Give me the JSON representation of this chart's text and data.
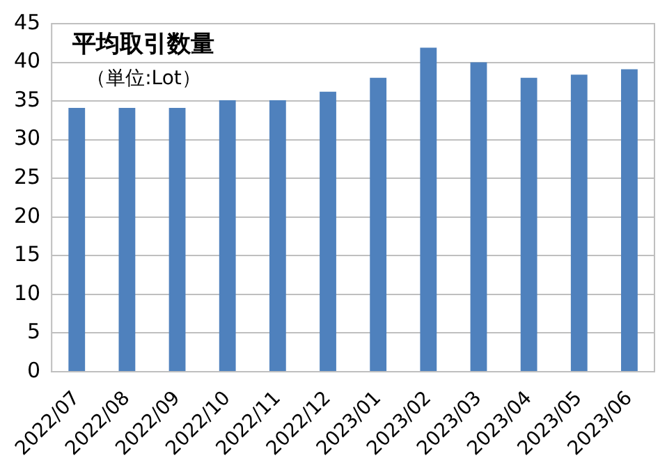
{
  "chart_data": {
    "type": "bar",
    "title": "平均取引数量",
    "subtitle": "（単位:Lot）",
    "categories": [
      "2022/07",
      "2022/08",
      "2022/09",
      "2022/10",
      "2022/11",
      "2022/12",
      "2023/01",
      "2023/02",
      "2023/03",
      "2023/04",
      "2023/05",
      "2023/06"
    ],
    "values": [
      34.1,
      34.1,
      34.1,
      35.1,
      35.1,
      36.2,
      38.0,
      41.9,
      40.0,
      38.0,
      38.4,
      39.1
    ],
    "color": "#4f81bd",
    "ylim": [
      0,
      45
    ],
    "yticks": [
      0,
      5,
      10,
      15,
      20,
      25,
      30,
      35,
      40,
      45
    ],
    "grid": "y",
    "legend": false
  }
}
